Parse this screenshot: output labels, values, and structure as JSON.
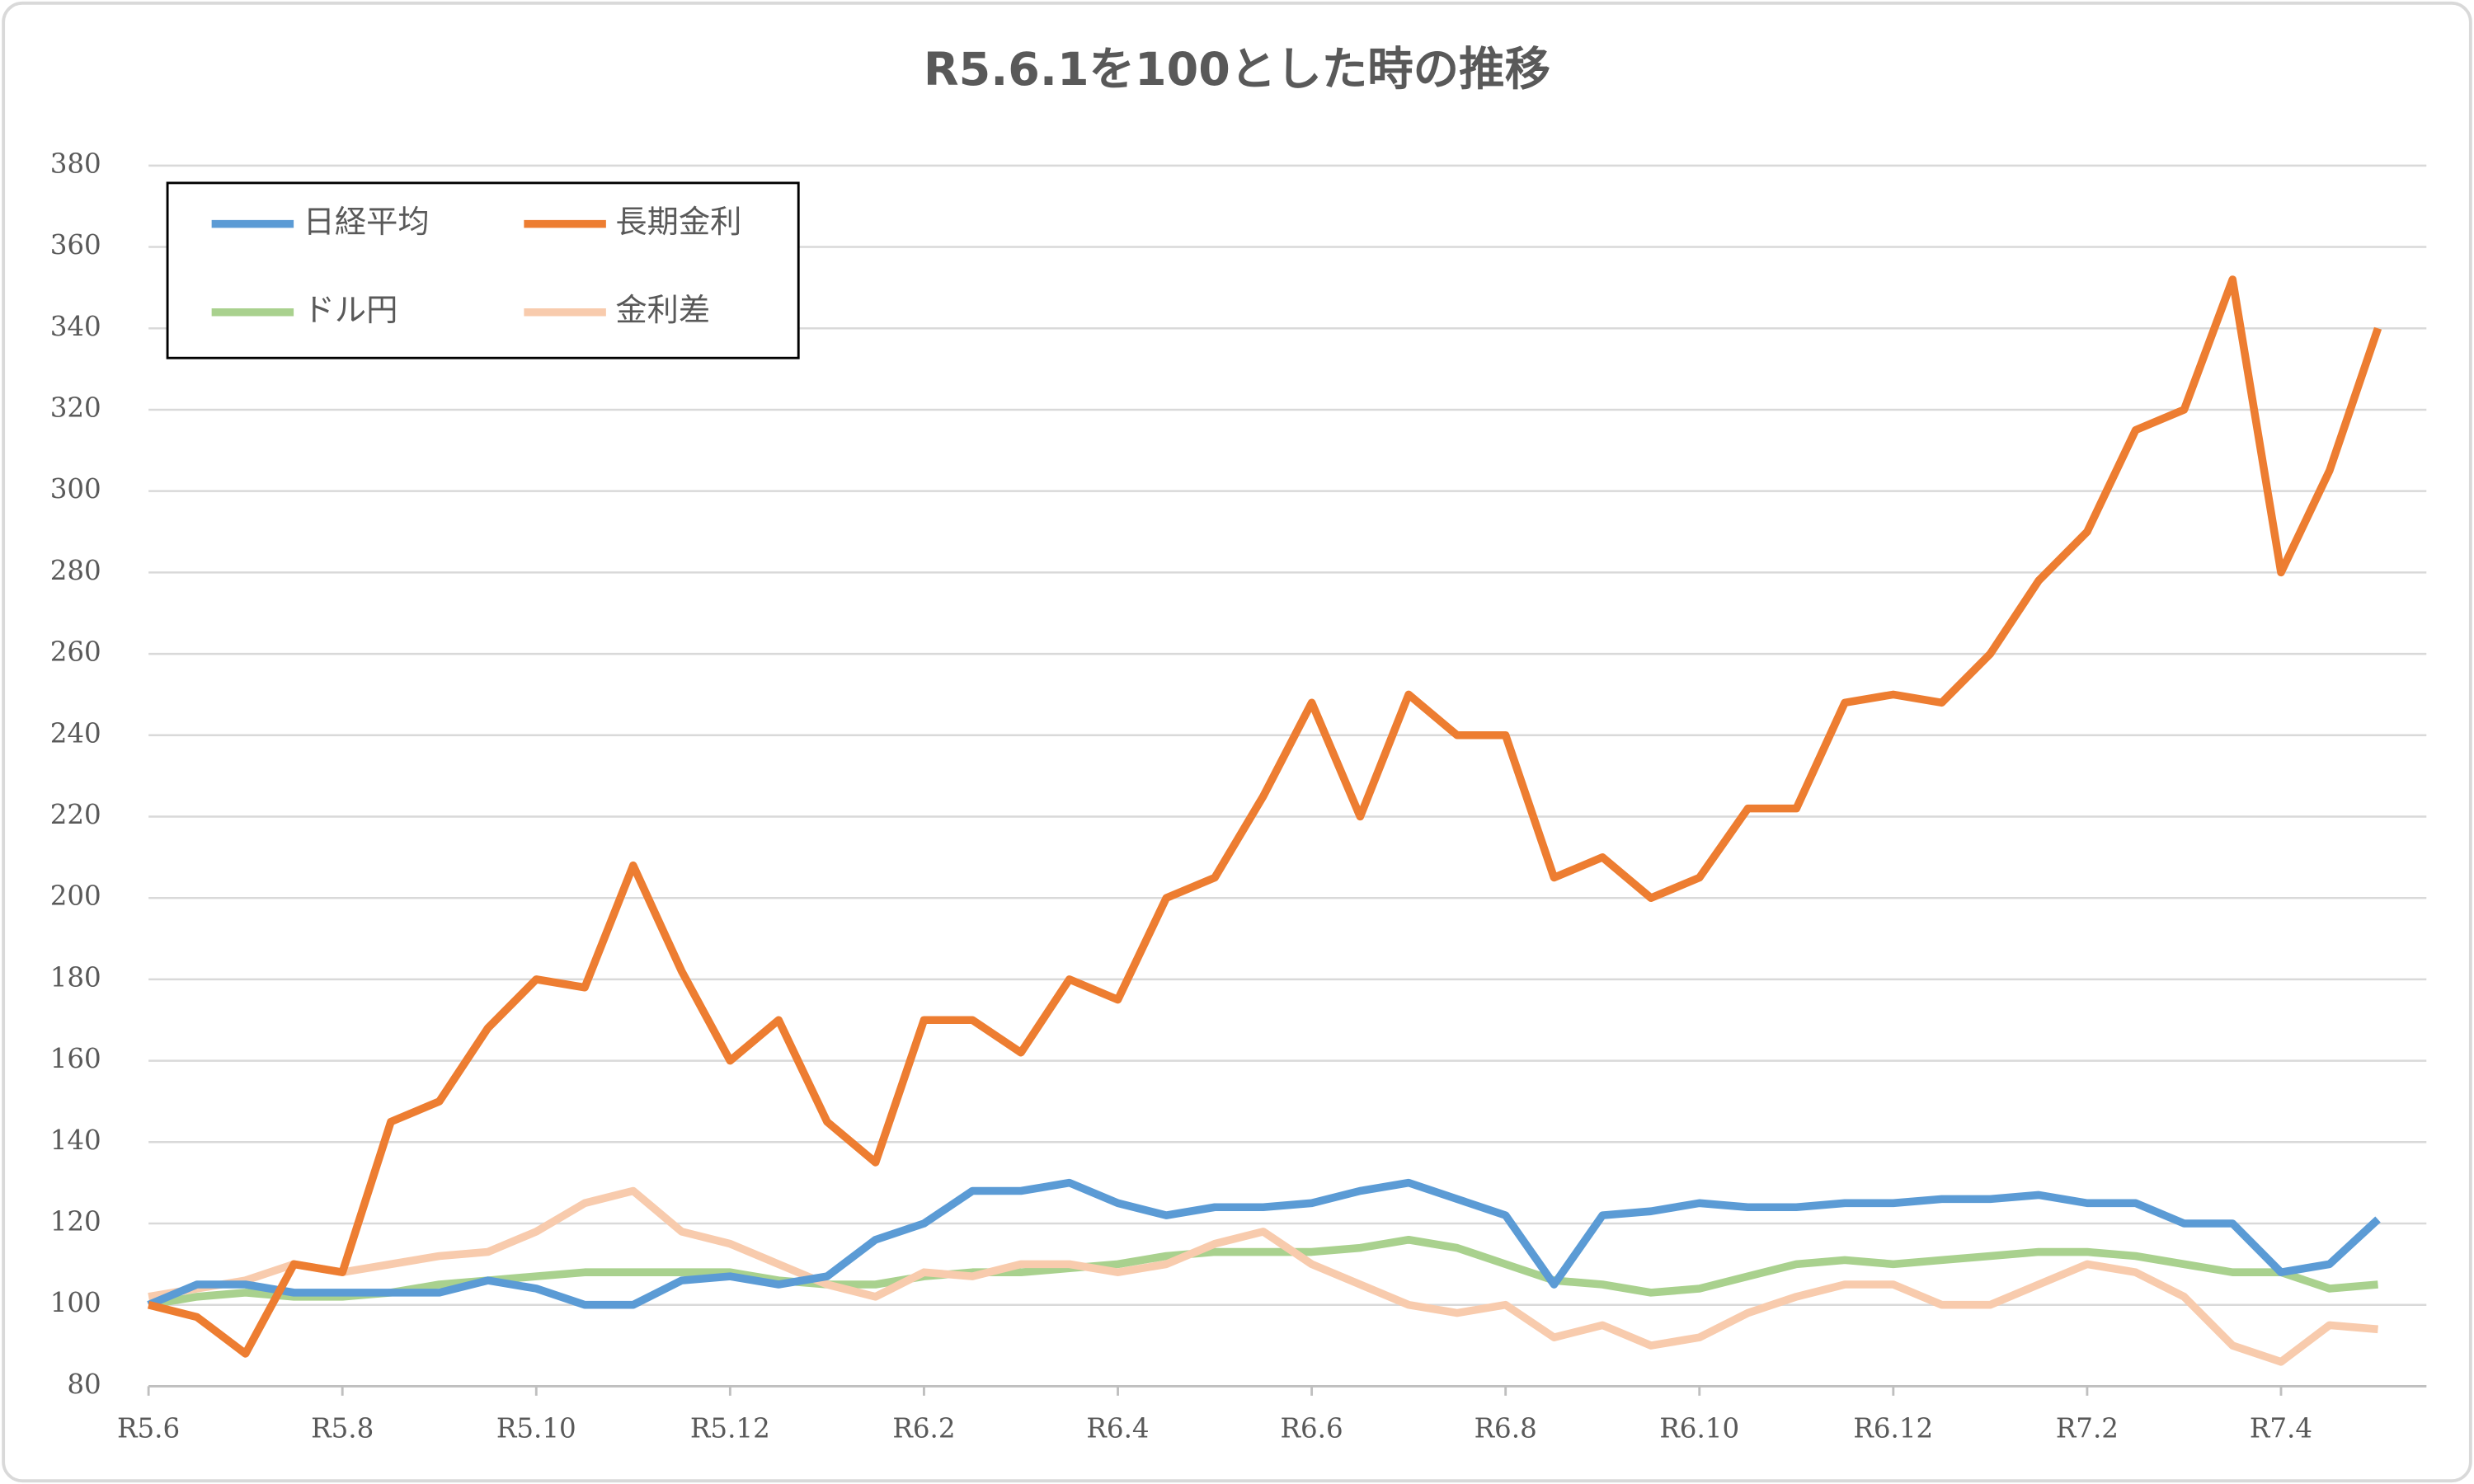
{
  "chart_data": {
    "type": "line",
    "title": "R5.6.1を100とした時の推移",
    "x": [
      0,
      0.5,
      1,
      1.5,
      2,
      2.5,
      3,
      3.5,
      4,
      4.5,
      5,
      5.5,
      6,
      6.5,
      7,
      7.5,
      8,
      8.5,
      9,
      9.5,
      10,
      10.5,
      11,
      11.5,
      12,
      12.5,
      13,
      13.5,
      14,
      14.5,
      15,
      15.5,
      16,
      16.5,
      17,
      17.5,
      18,
      18.5,
      19,
      19.5,
      20,
      20.5,
      21,
      21.5,
      22,
      22.5,
      23
    ],
    "series": [
      {
        "name": "日経平均",
        "color": "#5b9bd5",
        "values": [
          100,
          105,
          105,
          103,
          103,
          103,
          103,
          106,
          104,
          100,
          100,
          106,
          107,
          105,
          107,
          116,
          120,
          128,
          128,
          130,
          125,
          122,
          124,
          124,
          125,
          128,
          130,
          126,
          122,
          105,
          122,
          123,
          125,
          124,
          124,
          125,
          125,
          126,
          126,
          127,
          125,
          125,
          120,
          120,
          108,
          110,
          121
        ]
      },
      {
        "name": "長期金利",
        "color": "#ed7d31",
        "values": [
          100,
          97,
          88,
          110,
          108,
          145,
          150,
          168,
          180,
          178,
          208,
          182,
          160,
          170,
          145,
          135,
          170,
          170,
          162,
          180,
          175,
          200,
          205,
          225,
          248,
          220,
          250,
          240,
          240,
          205,
          210,
          200,
          205,
          222,
          222,
          248,
          250,
          248,
          260,
          278,
          290,
          315,
          320,
          352,
          280,
          305,
          340
        ]
      },
      {
        "name": "ドル円",
        "color": "#a9d18e",
        "values": [
          100,
          102,
          103,
          102,
          102,
          103,
          105,
          106,
          107,
          108,
          108,
          108,
          108,
          106,
          105,
          105,
          107,
          108,
          108,
          109,
          110,
          112,
          113,
          113,
          113,
          114,
          116,
          114,
          110,
          106,
          105,
          103,
          104,
          107,
          110,
          111,
          110,
          111,
          112,
          113,
          113,
          112,
          110,
          108,
          108,
          104,
          105
        ]
      },
      {
        "name": "金利差",
        "color": "#f8cbad",
        "values": [
          102,
          104,
          106,
          110,
          108,
          110,
          112,
          113,
          118,
          125,
          128,
          118,
          115,
          110,
          105,
          102,
          108,
          107,
          110,
          110,
          108,
          110,
          115,
          118,
          110,
          105,
          100,
          98,
          100,
          92,
          95,
          90,
          92,
          98,
          102,
          105,
          105,
          100,
          100,
          105,
          110,
          108,
          102,
          90,
          86,
          95,
          94
        ]
      }
    ],
    "xlim": [
      0,
      23.5
    ],
    "xticks": [
      {
        "value": 0,
        "label": "R5.6"
      },
      {
        "value": 2,
        "label": "R5.8"
      },
      {
        "value": 4,
        "label": "R5.10"
      },
      {
        "value": 6,
        "label": "R5.12"
      },
      {
        "value": 8,
        "label": "R6.2"
      },
      {
        "value": 10,
        "label": "R6.4"
      },
      {
        "value": 12,
        "label": "R6.6"
      },
      {
        "value": 14,
        "label": "R6.8"
      },
      {
        "value": 16,
        "label": "R6.10"
      },
      {
        "value": 18,
        "label": "R6.12"
      },
      {
        "value": 20,
        "label": "R7.2"
      },
      {
        "value": 22,
        "label": "R7.4"
      }
    ],
    "ylim": [
      80,
      380
    ],
    "yticks": [
      80,
      100,
      120,
      140,
      160,
      180,
      200,
      220,
      240,
      260,
      280,
      300,
      320,
      340,
      360,
      380
    ],
    "grid": true,
    "legend": "upper left"
  }
}
